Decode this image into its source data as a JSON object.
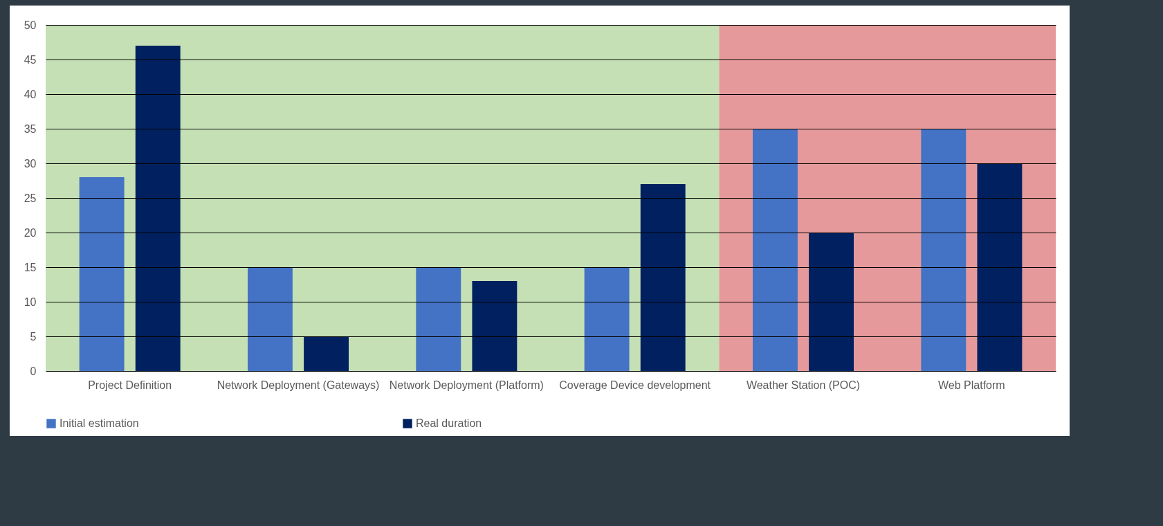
{
  "chart_data": {
    "type": "bar",
    "categories": [
      "Project Definition",
      "Network Deployment (Gateways)",
      "Network Deployment (Platform)",
      "Coverage Device development",
      "Weather Station (POC)",
      "Web Platform"
    ],
    "series": [
      {
        "name": "Initial estimation",
        "color": "#4472c4",
        "values": [
          28,
          15,
          15,
          15,
          35,
          35
        ]
      },
      {
        "name": "Real duration",
        "color": "#002060",
        "values": [
          47,
          5,
          13,
          27,
          20,
          30
        ]
      }
    ],
    "ylim": [
      0,
      50
    ],
    "yticks": [
      0,
      5,
      10,
      15,
      20,
      25,
      30,
      35,
      40,
      45,
      50
    ],
    "grid": "y",
    "legend": "bottom",
    "bands": [
      {
        "axis": "x",
        "from": "Project Definition",
        "to": "Coverage Device development",
        "color": "#c5e0b4"
      },
      {
        "axis": "x",
        "from": "Weather Station (POC)",
        "to": "Web Platform",
        "color": "#e6999a"
      }
    ]
  }
}
